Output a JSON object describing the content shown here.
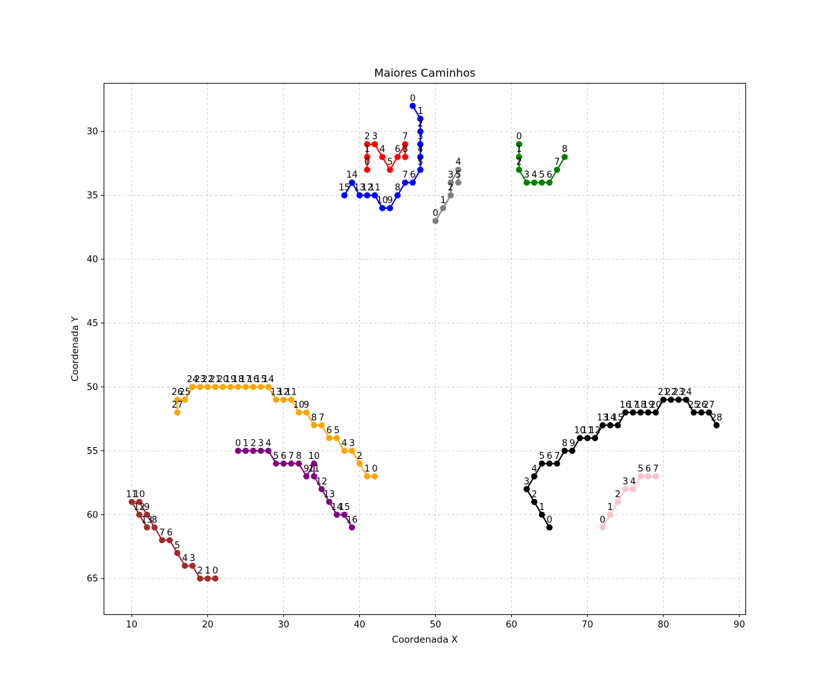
{
  "chart_data": {
    "type": "line",
    "title": "Maiores Caminhos",
    "xlabel": "Coordenada X",
    "ylabel": "Coordenada Y",
    "xlim": [
      6.3,
      90.8
    ],
    "ylim": [
      67.8,
      26.2
    ],
    "y_inverted": true,
    "x_ticks": [
      10,
      20,
      30,
      40,
      50,
      60,
      70,
      80,
      90
    ],
    "y_ticks": [
      30,
      35,
      40,
      45,
      50,
      55,
      60,
      65
    ],
    "grid": true,
    "point_labels": "index of each point along its path",
    "series": [
      {
        "color": "#0000ff",
        "points": [
          [
            47,
            28
          ],
          [
            48,
            29
          ],
          [
            48,
            30
          ],
          [
            48,
            31
          ],
          [
            48,
            32
          ],
          [
            48,
            33
          ],
          [
            47,
            34
          ],
          [
            46,
            34
          ],
          [
            45,
            35
          ],
          [
            44,
            36
          ],
          [
            43,
            36
          ],
          [
            42,
            35
          ],
          [
            41,
            35
          ],
          [
            40,
            35
          ],
          [
            39,
            34
          ],
          [
            38,
            35
          ]
        ]
      },
      {
        "color": "#ff0000",
        "points": [
          [
            41,
            33
          ],
          [
            41,
            32
          ],
          [
            41,
            31
          ],
          [
            42,
            31
          ],
          [
            43,
            32
          ],
          [
            44,
            33
          ],
          [
            45,
            32
          ],
          [
            46,
            31
          ],
          [
            46,
            32
          ]
        ]
      },
      {
        "color": "#808080",
        "points": [
          [
            50,
            37
          ],
          [
            51,
            36
          ],
          [
            52,
            35
          ],
          [
            52,
            34
          ],
          [
            53,
            33
          ],
          [
            53,
            34
          ]
        ]
      },
      {
        "color": "#008000",
        "points": [
          [
            61,
            31
          ],
          [
            61,
            32
          ],
          [
            61,
            33
          ],
          [
            62,
            34
          ],
          [
            63,
            34
          ],
          [
            64,
            34
          ],
          [
            65,
            34
          ],
          [
            66,
            33
          ],
          [
            67,
            32
          ]
        ]
      },
      {
        "color": "#ffa500",
        "points": [
          [
            42,
            57
          ],
          [
            41,
            57
          ],
          [
            40,
            56
          ],
          [
            39,
            55
          ],
          [
            38,
            55
          ],
          [
            37,
            54
          ],
          [
            36,
            54
          ],
          [
            35,
            53
          ],
          [
            34,
            53
          ],
          [
            33,
            52
          ],
          [
            32,
            52
          ],
          [
            31,
            51
          ],
          [
            30,
            51
          ],
          [
            29,
            51
          ],
          [
            28,
            50
          ],
          [
            27,
            50
          ],
          [
            26,
            50
          ],
          [
            25,
            50
          ],
          [
            24,
            50
          ],
          [
            23,
            50
          ],
          [
            22,
            50
          ],
          [
            21,
            50
          ],
          [
            20,
            50
          ],
          [
            19,
            50
          ],
          [
            18,
            50
          ],
          [
            17,
            51
          ],
          [
            16,
            51
          ],
          [
            16,
            52
          ]
        ]
      },
      {
        "color": "#800080",
        "points": [
          [
            24,
            55
          ],
          [
            25,
            55
          ],
          [
            26,
            55
          ],
          [
            27,
            55
          ],
          [
            28,
            55
          ],
          [
            29,
            56
          ],
          [
            30,
            56
          ],
          [
            31,
            56
          ],
          [
            32,
            56
          ],
          [
            33,
            57
          ],
          [
            34,
            56
          ],
          [
            34,
            57
          ],
          [
            35,
            58
          ],
          [
            36,
            59
          ],
          [
            37,
            60
          ],
          [
            38,
            60
          ],
          [
            39,
            61
          ]
        ]
      },
      {
        "color": "#a52a2a",
        "points": [
          [
            21,
            65
          ],
          [
            20,
            65
          ],
          [
            19,
            65
          ],
          [
            18,
            64
          ],
          [
            17,
            64
          ],
          [
            16,
            63
          ],
          [
            15,
            62
          ],
          [
            14,
            62
          ],
          [
            13,
            61
          ],
          [
            12,
            60
          ],
          [
            11,
            59
          ],
          [
            10,
            59
          ],
          [
            11,
            60
          ],
          [
            12,
            61
          ]
        ]
      },
      {
        "color": "#000000",
        "points": [
          [
            65,
            61
          ],
          [
            64,
            60
          ],
          [
            63,
            59
          ],
          [
            62,
            58
          ],
          [
            63,
            57
          ],
          [
            64,
            56
          ],
          [
            65,
            56
          ],
          [
            66,
            56
          ],
          [
            67,
            55
          ],
          [
            68,
            55
          ],
          [
            69,
            54
          ],
          [
            70,
            54
          ],
          [
            71,
            54
          ],
          [
            72,
            53
          ],
          [
            73,
            53
          ],
          [
            74,
            53
          ],
          [
            75,
            52
          ],
          [
            76,
            52
          ],
          [
            77,
            52
          ],
          [
            78,
            52
          ],
          [
            79,
            52
          ],
          [
            80,
            51
          ],
          [
            81,
            51
          ],
          [
            82,
            51
          ],
          [
            83,
            51
          ],
          [
            84,
            52
          ],
          [
            85,
            52
          ],
          [
            86,
            52
          ],
          [
            87,
            53
          ]
        ]
      },
      {
        "color": "#ffc0cb",
        "points": [
          [
            72,
            61
          ],
          [
            73,
            60
          ],
          [
            74,
            59
          ],
          [
            75,
            58
          ],
          [
            76,
            58
          ],
          [
            77,
            57
          ],
          [
            78,
            57
          ],
          [
            79,
            57
          ]
        ]
      }
    ]
  }
}
